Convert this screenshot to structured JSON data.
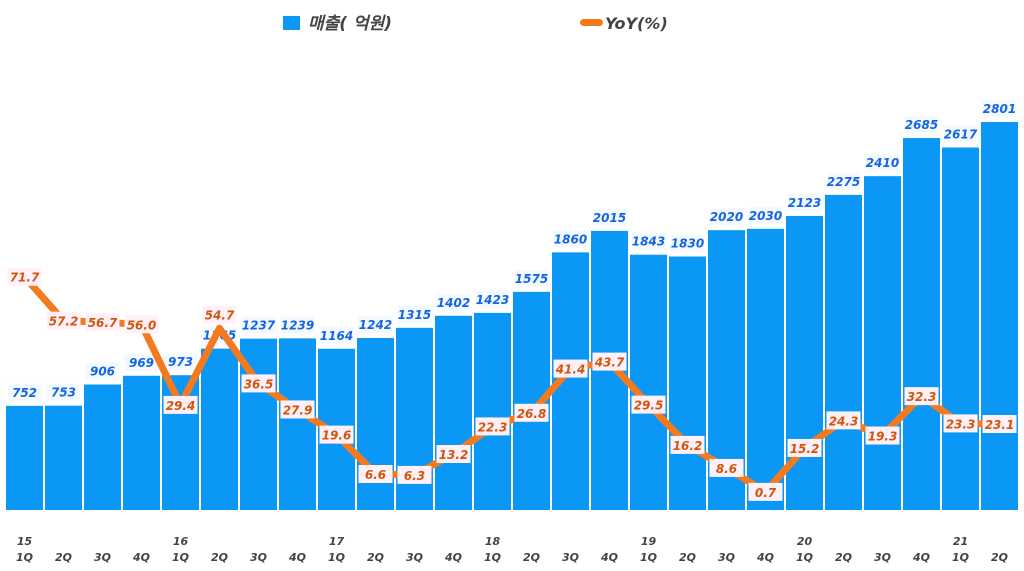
{
  "chart_data": {
    "type": "bar+line",
    "legend": {
      "position": "top",
      "entries": [
        "매출( 억원)",
        "YoY(%)"
      ]
    },
    "colors": {
      "bar": "#0A97F5",
      "line": "#F47A1F",
      "bar_label": "#1565E0",
      "line_label": "#D2560A",
      "line_label_bg": "#FFF0FA"
    },
    "x_year_labels": [
      "15",
      "",
      "",
      "",
      "16",
      "",
      "",
      "",
      "17",
      "",
      "",
      "",
      "18",
      "",
      "",
      "",
      "19",
      "",
      "",
      "",
      "20",
      "",
      "",
      "",
      "21",
      ""
    ],
    "x_quarter_labels": [
      "1Q",
      "2Q",
      "3Q",
      "4Q",
      "1Q",
      "2Q",
      "3Q",
      "4Q",
      "1Q",
      "2Q",
      "3Q",
      "4Q",
      "1Q",
      "2Q",
      "3Q",
      "4Q",
      "1Q",
      "2Q",
      "3Q",
      "4Q",
      "1Q",
      "2Q",
      "3Q",
      "4Q",
      "1Q",
      "2Q"
    ],
    "series": [
      {
        "name": "매출( 억원)",
        "type": "bar",
        "values": [
          752,
          753,
          906,
          969,
          973,
          1165,
          1237,
          1239,
          1164,
          1242,
          1315,
          1402,
          1423,
          1575,
          1860,
          2015,
          1843,
          1830,
          2020,
          2030,
          2123,
          2275,
          2410,
          2685,
          2617,
          2801
        ]
      },
      {
        "name": "YoY(%)",
        "type": "line",
        "values": [
          71.7,
          57.2,
          56.7,
          56.0,
          29.4,
          54.7,
          36.5,
          27.9,
          19.6,
          6.6,
          6.3,
          13.2,
          22.3,
          26.8,
          41.4,
          43.7,
          29.5,
          16.2,
          8.6,
          0.7,
          15.2,
          24.3,
          19.3,
          32.3,
          23.3,
          23.1
        ]
      }
    ],
    "grid": false
  }
}
